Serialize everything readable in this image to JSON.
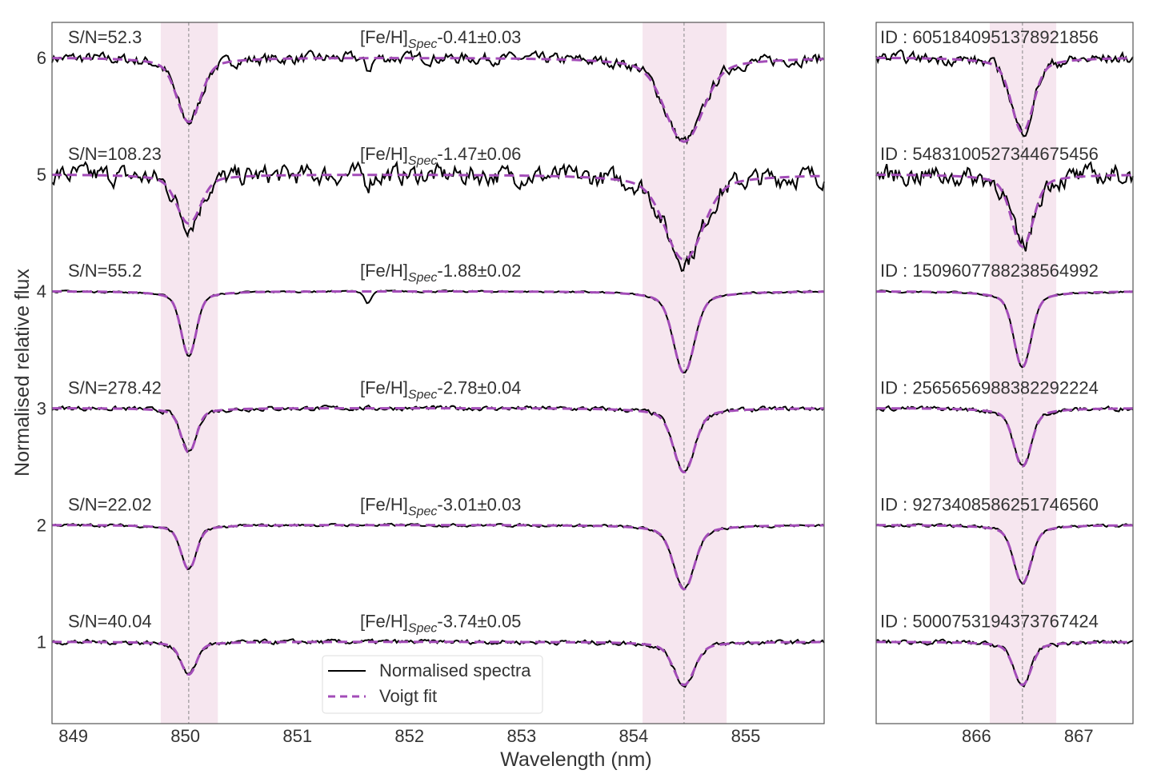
{
  "chart_data": [
    {
      "type": "line",
      "panel": "left",
      "xlabel": "Wavelength (nm)",
      "ylabel": "Normalised relative flux",
      "xlim": [
        848.81,
        855.7
      ],
      "ylim": [
        0.3,
        6.3
      ],
      "xticks": [
        "849",
        "850",
        "851",
        "852",
        "853",
        "854",
        "855"
      ],
      "yticks": [
        "1",
        "2",
        "3",
        "4",
        "5",
        "6"
      ],
      "line_centers": [
        850.03,
        854.45
      ],
      "shaded_regions": [
        [
          849.78,
          850.29
        ],
        [
          854.08,
          854.83
        ]
      ],
      "grid": false,
      "legend": {
        "placement": "bottom-center",
        "entries": [
          "Normalised spectra",
          "Voigt fit"
        ]
      }
    },
    {
      "type": "line",
      "panel": "right",
      "xlim": [
        865.02,
        867.53
      ],
      "ylim": [
        0.3,
        6.3
      ],
      "xticks": [
        "866",
        "867"
      ],
      "line_centers": [
        866.45
      ],
      "shaded_regions": [
        [
          866.13,
          866.78
        ]
      ],
      "grid": false
    }
  ],
  "spectra": [
    {
      "offset": 6,
      "sn": "S/N=52.3",
      "feh": "-0.41±0.03",
      "id": "ID : 6051840951378921856",
      "minima": [
        5.45,
        5.28,
        5.36
      ]
    },
    {
      "offset": 5,
      "sn": "S/N=108.23",
      "feh": "-1.47±0.06",
      "id": "ID : 5483100527344675456",
      "minima": [
        4.58,
        4.27,
        4.38
      ]
    },
    {
      "offset": 4,
      "sn": "S/N=55.2",
      "feh": "-1.88±0.02",
      "id": "ID : 1509607788238564992",
      "minima": [
        3.45,
        3.3,
        3.35
      ]
    },
    {
      "offset": 3,
      "sn": "S/N=278.42",
      "feh": "-2.78±0.04",
      "id": "ID : 2565656988382292224",
      "minima": [
        2.62,
        2.45,
        2.5
      ]
    },
    {
      "offset": 2,
      "sn": "S/N=22.02",
      "feh": "-3.01±0.03",
      "id": "ID : 9273408586251746560",
      "minima": [
        1.62,
        1.45,
        1.5
      ]
    },
    {
      "offset": 1,
      "sn": "S/N=40.04",
      "feh": "-3.74±0.05",
      "id": "ID : 5000753194373767424",
      "minima": [
        0.72,
        0.63,
        0.63
      ]
    }
  ],
  "feh_prefix": "[Fe/H]",
  "feh_sub": "Spec",
  "colors": {
    "spectra": "#000000",
    "fit": "#a34cb8",
    "band": "#f6e6ef",
    "centerline": "#888888"
  }
}
